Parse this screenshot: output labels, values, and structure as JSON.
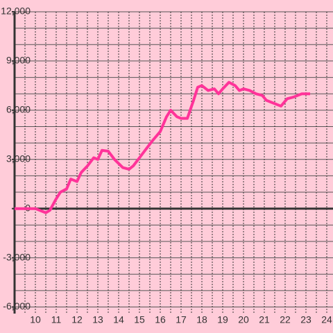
{
  "chart_data": {
    "type": "line",
    "x": [
      9,
      10,
      10.3,
      10.5,
      10.7,
      11,
      11.2,
      11.5,
      11.7,
      12,
      12.2,
      12.5,
      12.8,
      13,
      13.2,
      13.5,
      13.8,
      14.2,
      14.5,
      14.7,
      15,
      15.3,
      15.6,
      16,
      16.3,
      16.5,
      16.8,
      17,
      17.3,
      17.6,
      17.8,
      18,
      18.3,
      18.6,
      18.8,
      19,
      19.3,
      19.6,
      19.8,
      20,
      20.3,
      20.6,
      20.9,
      21.1,
      21.5,
      21.8,
      22.1,
      22.4,
      22.8,
      23,
      23.2
    ],
    "series": [
      {
        "color": "#ff3399",
        "values": [
          0,
          0,
          -150,
          -250,
          -100,
          600,
          1000,
          1200,
          1800,
          1650,
          2200,
          2600,
          3100,
          3000,
          3550,
          3500,
          3000,
          2500,
          2400,
          2600,
          3100,
          3600,
          4100,
          4700,
          5600,
          6000,
          5600,
          5500,
          5500,
          6600,
          7400,
          7500,
          7200,
          7300,
          7000,
          7300,
          7700,
          7500,
          7200,
          7300,
          7200,
          7000,
          6900,
          6600,
          6400,
          6250,
          6700,
          6800,
          7000,
          7000,
          7000
        ]
      }
    ],
    "xlim": [
      9,
      24.3
    ],
    "ylim": [
      -6400,
      12000
    ],
    "xticks": [
      10,
      11,
      12,
      13,
      14,
      15,
      16,
      17,
      18,
      19,
      20,
      21,
      22,
      23,
      24
    ],
    "yticks": [
      {
        "value": -6000,
        "label": "-6,000"
      },
      {
        "value": -3000,
        "label": "-3,000"
      },
      0,
      {
        "value": 3000,
        "label": "3,000"
      },
      {
        "value": 6000,
        "label": "6,000"
      },
      {
        "value": 9000,
        "label": "9,000"
      },
      {
        "value": 12000,
        "label": "12,000"
      }
    ],
    "ygrid": [
      -6000,
      -5000,
      -4000,
      -3000,
      -2000,
      -1000,
      0,
      1000,
      2000,
      3000,
      4000,
      5000,
      6000,
      7000,
      8000,
      9000,
      10000,
      11000,
      12000
    ],
    "xgrid": [
      9.5,
      10,
      10.5,
      11,
      11.5,
      12,
      12.5,
      13,
      13.5,
      14,
      14.5,
      15,
      15.5,
      16,
      16.5,
      17,
      17.5,
      18,
      18.5,
      19,
      19.5,
      20,
      20.5,
      21,
      21.5,
      22,
      22.5,
      23,
      23.5,
      24
    ]
  }
}
